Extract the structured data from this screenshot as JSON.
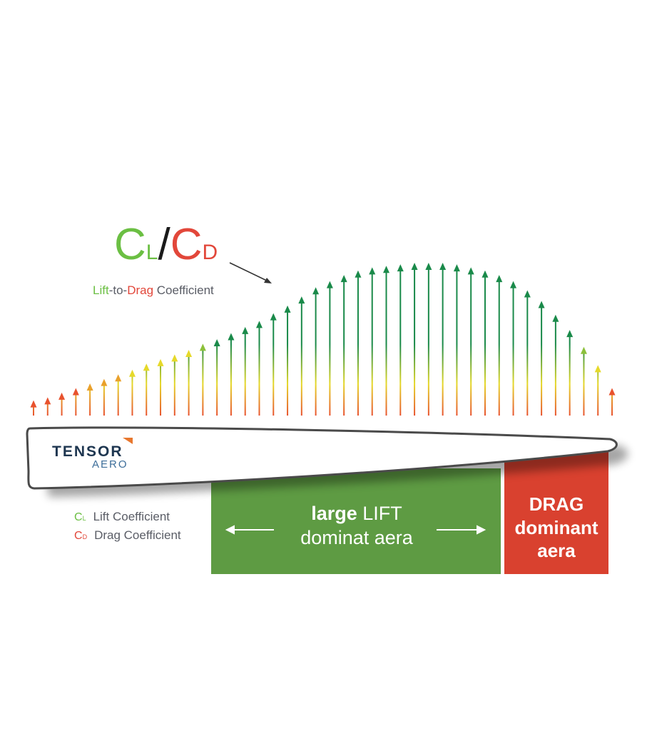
{
  "ratio_symbol": {
    "c1": "C",
    "l_sub": "L",
    "slash": "/",
    "c2": "C",
    "d_sub": "D"
  },
  "ratio_caption": {
    "lift": "Lift",
    "to": "-to-",
    "drag": "Drag",
    "coef": " Coefficient"
  },
  "legend": [
    {
      "sym": "C",
      "sub": "L",
      "label": "Lift Coefficient",
      "color": "#6bbf43"
    },
    {
      "sym": "C",
      "sub": "D",
      "label": "Drag Coefficient",
      "color": "#e2473a"
    }
  ],
  "zones": {
    "lift_line1_bold": "large",
    "lift_line1_rest": " LIFT",
    "lift_line2": "dominat aera",
    "drag_line1": "DRAG",
    "drag_line2": "dominant",
    "drag_line3": "aera",
    "lift_color": "#5e9b43",
    "drag_color": "#d9412f"
  },
  "logo": {
    "line1": "TENSOR",
    "line2": "AERO",
    "accent": "#e8772e"
  },
  "arrow_profile": {
    "count": 42,
    "relative_lengths": [
      0.1,
      0.12,
      0.15,
      0.18,
      0.21,
      0.24,
      0.27,
      0.3,
      0.34,
      0.37,
      0.4,
      0.43,
      0.47,
      0.5,
      0.54,
      0.58,
      0.62,
      0.67,
      0.72,
      0.78,
      0.84,
      0.88,
      0.92,
      0.95,
      0.97,
      0.98,
      0.99,
      1.0,
      1.0,
      1.0,
      0.99,
      0.97,
      0.95,
      0.92,
      0.88,
      0.82,
      0.75,
      0.66,
      0.56,
      0.45,
      0.33,
      0.18
    ],
    "colors": {
      "base": "#e8522e",
      "mid": "#e6d92a",
      "top": "#1a8a4a"
    }
  }
}
